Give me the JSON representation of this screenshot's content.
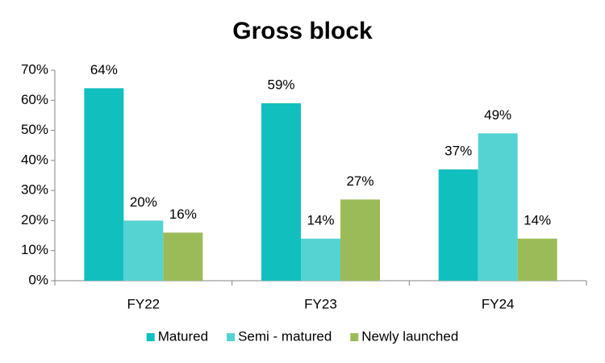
{
  "chart_data": {
    "type": "bar",
    "title": "Gross block",
    "categories": [
      "FY22",
      "FY23",
      "FY24"
    ],
    "series": [
      {
        "name": "Matured",
        "color": "#12bfbf",
        "values": [
          64,
          59,
          37
        ],
        "value_labels": [
          "64%",
          "59%",
          "37%"
        ]
      },
      {
        "name": "Semi - matured",
        "color": "#55d3d3",
        "values": [
          20,
          14,
          49
        ],
        "value_labels": [
          "20%",
          "14%",
          "49%"
        ]
      },
      {
        "name": "Newly launched",
        "color": "#9bbb59",
        "values": [
          16,
          27,
          14
        ],
        "value_labels": [
          "16%",
          "27%",
          "14%"
        ]
      }
    ],
    "ylim": [
      0,
      70
    ],
    "yticks": [
      {
        "value": 0,
        "label": "0%"
      },
      {
        "value": 10,
        "label": "10%"
      },
      {
        "value": 20,
        "label": "20%"
      },
      {
        "value": 30,
        "label": "30%"
      },
      {
        "value": 40,
        "label": "40%"
      },
      {
        "value": 50,
        "label": "50%"
      },
      {
        "value": 60,
        "label": "60%"
      },
      {
        "value": 70,
        "label": "70%"
      }
    ],
    "grid": false,
    "legend": "bottom"
  }
}
